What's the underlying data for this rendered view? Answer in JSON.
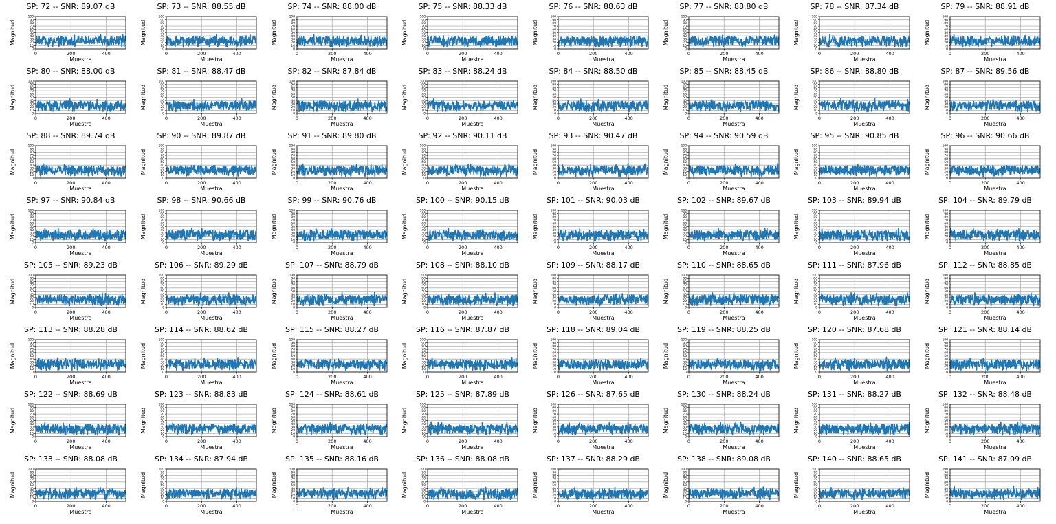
{
  "figure": {
    "xlabel": "Muestra",
    "ylabel": "Magnitud",
    "line_color": "#1f77b4",
    "grid_color": "#b0b0b0",
    "x_ticks": [
      "0",
      "200",
      "400"
    ],
    "y_ticks": [
      "0",
      "10",
      "20",
      "30",
      "40",
      "50",
      "60",
      "70",
      "80",
      "90",
      "100"
    ]
  },
  "chart_data": {
    "type": "line",
    "layout": "grid 8 rows x 8 columns of small multiples",
    "xlabel": "Muestra",
    "ylabel": "Magnitud",
    "xlim": [
      0,
      511
    ],
    "ylim": [
      0,
      100
    ],
    "x_ticks": [
      0,
      200,
      400
    ],
    "y_ticks": [
      0,
      10,
      20,
      30,
      40,
      50,
      60,
      70,
      80,
      90,
      100
    ],
    "grid": true,
    "signal_level_approx": [
      10,
      40
    ],
    "panels": [
      {
        "title": "SP: 72 -- SNR: 89.07 dB",
        "sp": 72,
        "snr_db": 89.07
      },
      {
        "title": "SP: 73 -- SNR: 88.55 dB",
        "sp": 73,
        "snr_db": 88.55
      },
      {
        "title": "SP: 74 -- SNR: 88.00 dB",
        "sp": 74,
        "snr_db": 88.0
      },
      {
        "title": "SP: 75 -- SNR: 88.33 dB",
        "sp": 75,
        "snr_db": 88.33
      },
      {
        "title": "SP: 76 -- SNR: 88.63 dB",
        "sp": 76,
        "snr_db": 88.63
      },
      {
        "title": "SP: 77 -- SNR: 88.80 dB",
        "sp": 77,
        "snr_db": 88.8
      },
      {
        "title": "SP: 78 -- SNR: 87.34 dB",
        "sp": 78,
        "snr_db": 87.34
      },
      {
        "title": "SP: 79 -- SNR: 88.91 dB",
        "sp": 79,
        "snr_db": 88.91
      },
      {
        "title": "SP: 80 -- SNR: 88.00 dB",
        "sp": 80,
        "snr_db": 88.0
      },
      {
        "title": "SP: 81 -- SNR: 88.47 dB",
        "sp": 81,
        "snr_db": 88.47
      },
      {
        "title": "SP: 82 -- SNR: 87.84 dB",
        "sp": 82,
        "snr_db": 87.84
      },
      {
        "title": "SP: 83 -- SNR: 88.24 dB",
        "sp": 83,
        "snr_db": 88.24
      },
      {
        "title": "SP: 84 -- SNR: 88.50 dB",
        "sp": 84,
        "snr_db": 88.5
      },
      {
        "title": "SP: 85 -- SNR: 88.45 dB",
        "sp": 85,
        "snr_db": 88.45
      },
      {
        "title": "SP: 86 -- SNR: 88.80 dB",
        "sp": 86,
        "snr_db": 88.8
      },
      {
        "title": "SP: 87 -- SNR: 89.56 dB",
        "sp": 87,
        "snr_db": 89.56
      },
      {
        "title": "SP: 88 -- SNR: 89.74 dB",
        "sp": 88,
        "snr_db": 89.74
      },
      {
        "title": "SP: 90 -- SNR: 89.87 dB",
        "sp": 90,
        "snr_db": 89.87
      },
      {
        "title": "SP: 91 -- SNR: 89.80 dB",
        "sp": 91,
        "snr_db": 89.8
      },
      {
        "title": "SP: 92 -- SNR: 90.11 dB",
        "sp": 92,
        "snr_db": 90.11
      },
      {
        "title": "SP: 93 -- SNR: 90.47 dB",
        "sp": 93,
        "snr_db": 90.47
      },
      {
        "title": "SP: 94 -- SNR: 90.59 dB",
        "sp": 94,
        "snr_db": 90.59
      },
      {
        "title": "SP: 95 -- SNR: 90.85 dB",
        "sp": 95,
        "snr_db": 90.85
      },
      {
        "title": "SP: 96 -- SNR: 90.66 dB",
        "sp": 96,
        "snr_db": 90.66
      },
      {
        "title": "SP: 97 -- SNR: 90.84 dB",
        "sp": 97,
        "snr_db": 90.84
      },
      {
        "title": "SP: 98 -- SNR: 90.66 dB",
        "sp": 98,
        "snr_db": 90.66
      },
      {
        "title": "SP: 99 -- SNR: 90.76 dB",
        "sp": 99,
        "snr_db": 90.76
      },
      {
        "title": "SP: 100 -- SNR: 90.15 dB",
        "sp": 100,
        "snr_db": 90.15
      },
      {
        "title": "SP: 101 -- SNR: 90.03 dB",
        "sp": 101,
        "snr_db": 90.03
      },
      {
        "title": "SP: 102 -- SNR: 89.67 dB",
        "sp": 102,
        "snr_db": 89.67
      },
      {
        "title": "SP: 103 -- SNR: 89.94 dB",
        "sp": 103,
        "snr_db": 89.94
      },
      {
        "title": "SP: 104 -- SNR: 89.79 dB",
        "sp": 104,
        "snr_db": 89.79
      },
      {
        "title": "SP: 105 -- SNR: 89.23 dB",
        "sp": 105,
        "snr_db": 89.23
      },
      {
        "title": "SP: 106 -- SNR: 89.29 dB",
        "sp": 106,
        "snr_db": 89.29
      },
      {
        "title": "SP: 107 -- SNR: 88.79 dB",
        "sp": 107,
        "snr_db": 88.79
      },
      {
        "title": "SP: 108 -- SNR: 88.10 dB",
        "sp": 108,
        "snr_db": 88.1
      },
      {
        "title": "SP: 109 -- SNR: 88.17 dB",
        "sp": 109,
        "snr_db": 88.17
      },
      {
        "title": "SP: 110 -- SNR: 88.65 dB",
        "sp": 110,
        "snr_db": 88.65
      },
      {
        "title": "SP: 111 -- SNR: 87.96 dB",
        "sp": 111,
        "snr_db": 87.96
      },
      {
        "title": "SP: 112 -- SNR: 88.85 dB",
        "sp": 112,
        "snr_db": 88.85
      },
      {
        "title": "SP: 113 -- SNR: 88.28 dB",
        "sp": 113,
        "snr_db": 88.28
      },
      {
        "title": "SP: 114 -- SNR: 88.62 dB",
        "sp": 114,
        "snr_db": 88.62
      },
      {
        "title": "SP: 115 -- SNR: 88.27 dB",
        "sp": 115,
        "snr_db": 88.27
      },
      {
        "title": "SP: 116 -- SNR: 87.87 dB",
        "sp": 116,
        "snr_db": 87.87
      },
      {
        "title": "SP: 118 -- SNR: 89.04 dB",
        "sp": 118,
        "snr_db": 89.04
      },
      {
        "title": "SP: 119 -- SNR: 88.25 dB",
        "sp": 119,
        "snr_db": 88.25
      },
      {
        "title": "SP: 120 -- SNR: 87.68 dB",
        "sp": 120,
        "snr_db": 87.68
      },
      {
        "title": "SP: 121 -- SNR: 88.14 dB",
        "sp": 121,
        "snr_db": 88.14
      },
      {
        "title": "SP: 122 -- SNR: 88.69 dB",
        "sp": 122,
        "snr_db": 88.69
      },
      {
        "title": "SP: 123 -- SNR: 88.83 dB",
        "sp": 123,
        "snr_db": 88.83
      },
      {
        "title": "SP: 124 -- SNR: 88.61 dB",
        "sp": 124,
        "snr_db": 88.61
      },
      {
        "title": "SP: 125 -- SNR: 87.89 dB",
        "sp": 125,
        "snr_db": 87.89
      },
      {
        "title": "SP: 126 -- SNR: 87.65 dB",
        "sp": 126,
        "snr_db": 87.65
      },
      {
        "title": "SP: 130 -- SNR: 88.24 dB",
        "sp": 130,
        "snr_db": 88.24
      },
      {
        "title": "SP: 131 -- SNR: 88.27 dB",
        "sp": 131,
        "snr_db": 88.27
      },
      {
        "title": "SP: 132 -- SNR: 88.48 dB",
        "sp": 132,
        "snr_db": 88.48
      },
      {
        "title": "SP: 133 -- SNR: 88.08 dB",
        "sp": 133,
        "snr_db": 88.08
      },
      {
        "title": "SP: 134 -- SNR: 87.94 dB",
        "sp": 134,
        "snr_db": 87.94
      },
      {
        "title": "SP: 135 -- SNR: 88.16 dB",
        "sp": 135,
        "snr_db": 88.16
      },
      {
        "title": "SP: 136 -- SNR: 88.08 dB",
        "sp": 136,
        "snr_db": 88.08
      },
      {
        "title": "SP: 137 -- SNR: 88.29 dB",
        "sp": 137,
        "snr_db": 88.29
      },
      {
        "title": "SP: 138 -- SNR: 89.08 dB",
        "sp": 138,
        "snr_db": 89.08
      },
      {
        "title": "SP: 140 -- SNR: 88.65 dB",
        "sp": 140,
        "snr_db": 88.65
      },
      {
        "title": "SP: 141 -- SNR: 87.09 dB",
        "sp": 141,
        "snr_db": 87.09
      }
    ]
  }
}
